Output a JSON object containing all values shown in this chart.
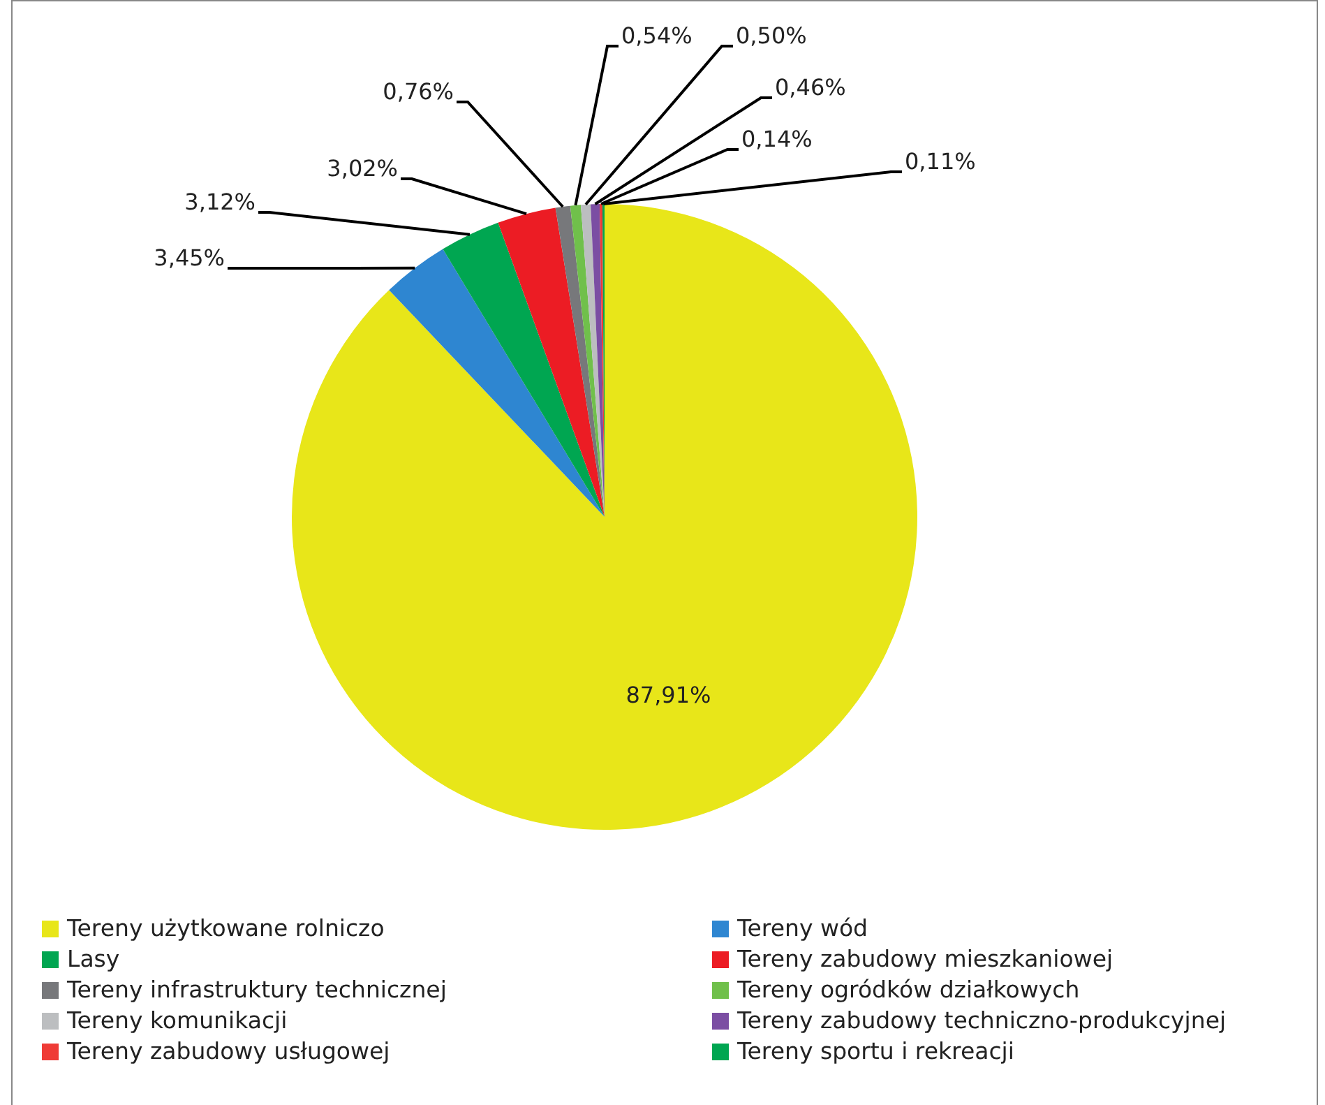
{
  "chart_data": {
    "type": "pie",
    "categories": [
      "Tereny użytkowane rolniczo",
      "Tereny wód",
      "Lasy",
      "Tereny zabudowy mieszkaniowej",
      "Tereny infrastruktury technicznej",
      "Tereny ogródków działkowych",
      "Tereny komunikacji",
      "Tereny zabudowy techniczno-produkcyjnej",
      "Tereny zabudowy usługowej",
      "Tereny sportu i rekreacji"
    ],
    "values": [
      87.91,
      3.45,
      3.12,
      3.02,
      0.76,
      0.54,
      0.5,
      0.46,
      0.14,
      0.11
    ],
    "colors": [
      "#e8e619",
      "#2e86d1",
      "#00a651",
      "#ec1c24",
      "#77787b",
      "#70c04b",
      "#bcbec0",
      "#7b4ea3",
      "#ef3b36",
      "#00a651"
    ],
    "value_labels": [
      "87,91%",
      "3,45%",
      "3,12%",
      "3,02%",
      "0,76%",
      "0,54%",
      "0,50%",
      "0,46%",
      "0,14%",
      "0,11%"
    ],
    "legend": "bottom"
  }
}
